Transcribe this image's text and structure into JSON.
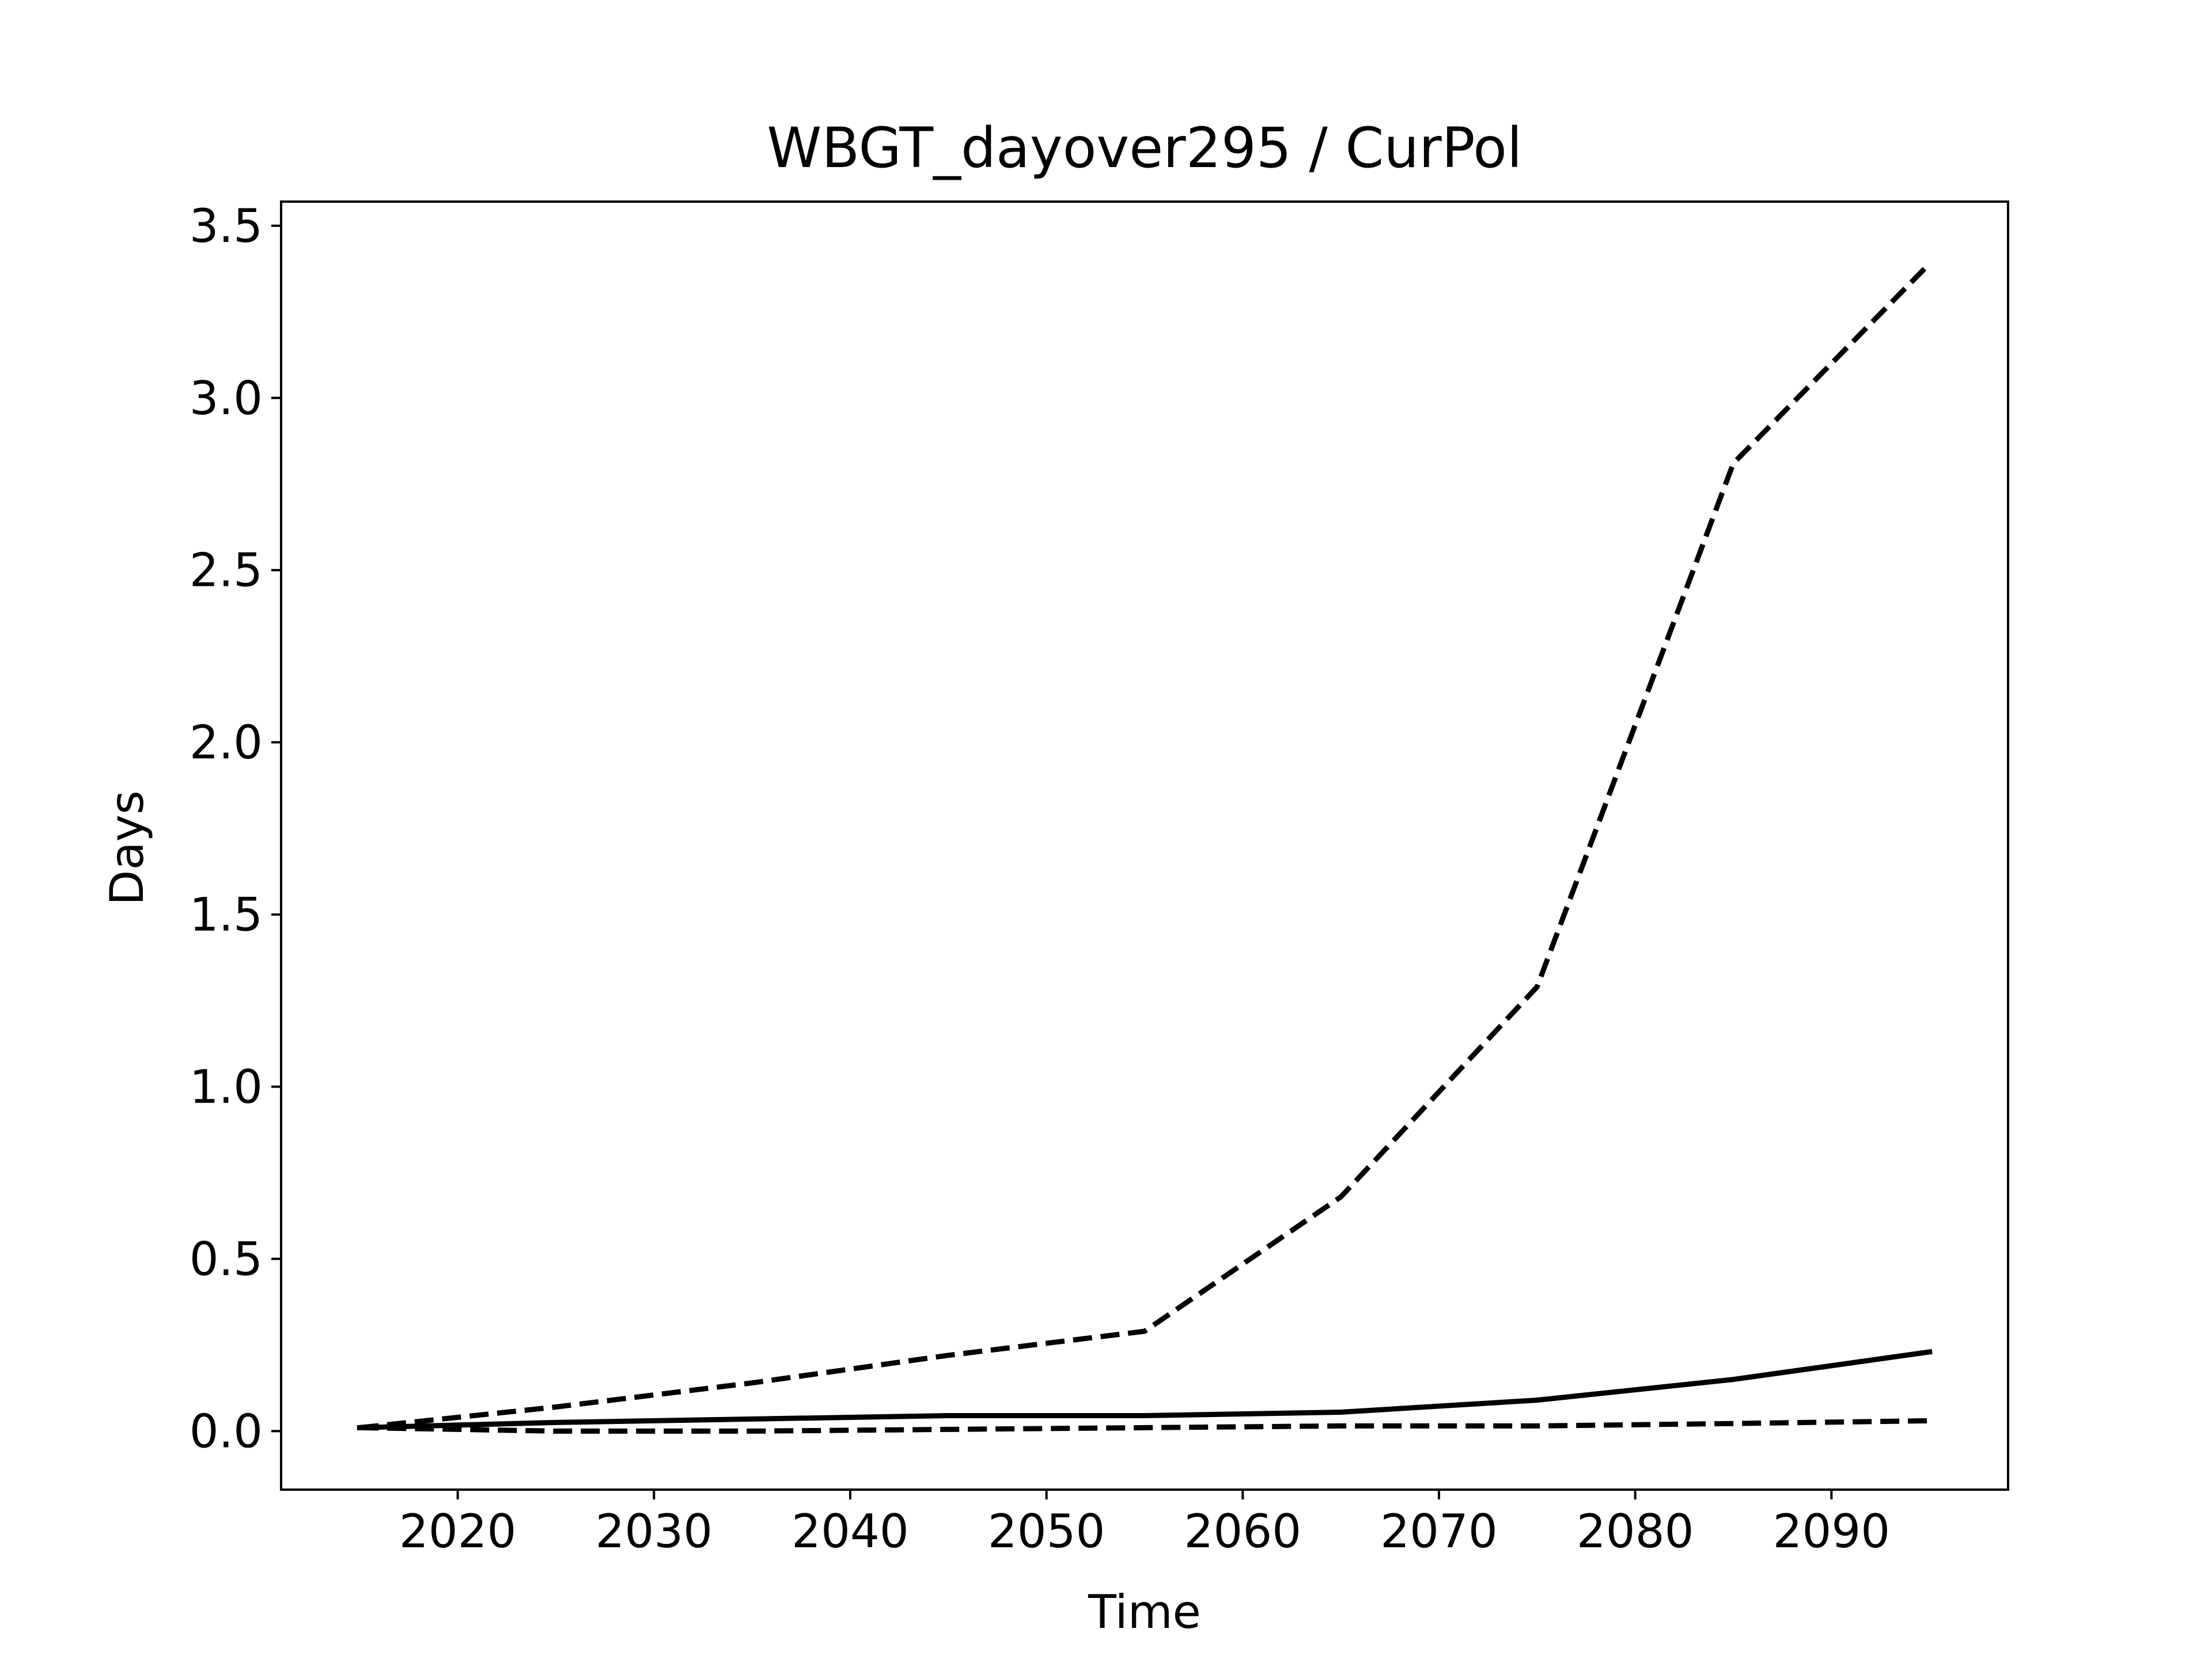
{
  "chart_data": {
    "type": "line",
    "title": "WBGT_dayover295 / CurPol",
    "xlabel": "Time",
    "ylabel": "Days",
    "xlim": [
      2011,
      2099
    ],
    "ylim": [
      -0.17,
      3.57
    ],
    "x_ticks": [
      2020,
      2030,
      2040,
      2050,
      2060,
      2070,
      2080,
      2090
    ],
    "x_tick_labels": [
      "2020",
      "2030",
      "2040",
      "2050",
      "2060",
      "2070",
      "2080",
      "2090"
    ],
    "y_ticks": [
      0.0,
      0.5,
      1.0,
      1.5,
      2.0,
      2.5,
      3.0,
      3.5
    ],
    "y_tick_labels": [
      "0.0",
      "0.5",
      "1.0",
      "1.5",
      "2.0",
      "2.5",
      "3.0",
      "3.5"
    ],
    "grid": false,
    "x": [
      2015,
      2025,
      2035,
      2045,
      2055,
      2065,
      2075,
      2085,
      2095
    ],
    "series": [
      {
        "style": "solid",
        "color": "#000000",
        "values": [
          0.01,
          0.025,
          0.035,
          0.045,
          0.045,
          0.055,
          0.09,
          0.15,
          0.23
        ]
      },
      {
        "style": "dashed",
        "color": "#000000",
        "values": [
          0.01,
          0.07,
          0.14,
          0.22,
          0.29,
          0.68,
          1.29,
          2.81,
          3.39
        ]
      },
      {
        "style": "dashed",
        "color": "#000000",
        "values": [
          0.01,
          0.0,
          0.0,
          0.005,
          0.01,
          0.015,
          0.015,
          0.022,
          0.03
        ]
      }
    ]
  }
}
